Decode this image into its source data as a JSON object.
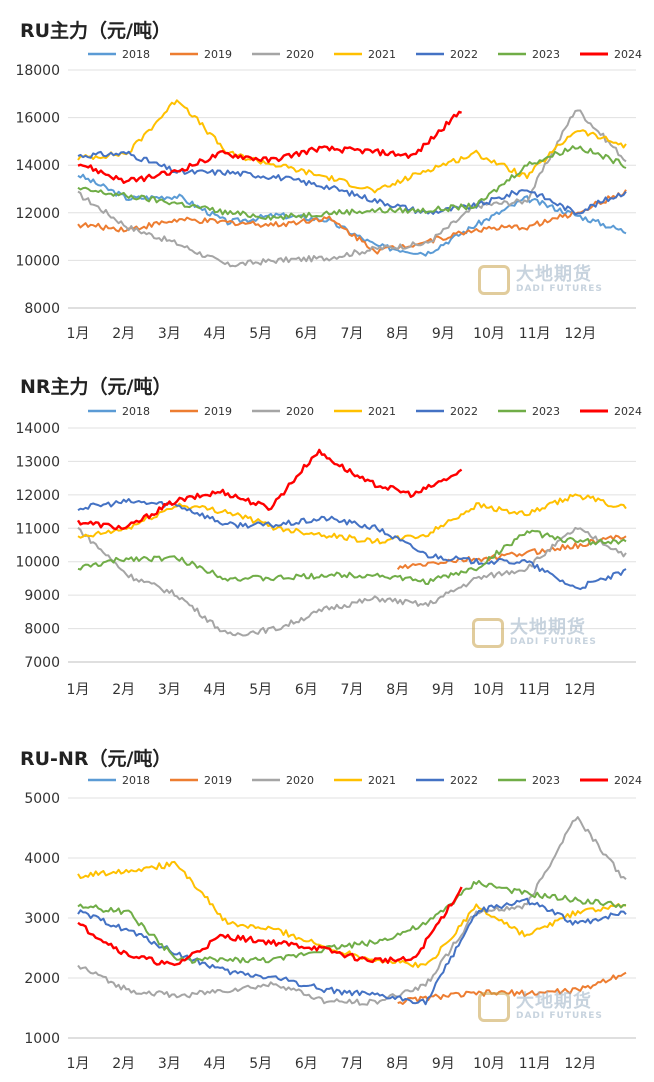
{
  "watermark": {
    "cn": "大地期货",
    "en": "DADI FUTURES"
  },
  "colors": {
    "2018": "#5b9bd5",
    "2019": "#ed7d31",
    "2020": "#a5a5a5",
    "2021": "#ffc000",
    "2022": "#4472c4",
    "2023": "#70ad47",
    "2024": "#ff0000"
  },
  "chart_data": [
    {
      "type": "line",
      "title": "RU主力（元/吨）",
      "months": [
        "1月",
        "2月",
        "3月",
        "4月",
        "5月",
        "6月",
        "7月",
        "8月",
        "9月",
        "10月",
        "11月",
        "12月"
      ],
      "ylim": [
        8000,
        18000
      ],
      "yticks": [
        8000,
        10000,
        12000,
        14000,
        16000,
        18000
      ],
      "legend": [
        "2018",
        "2019",
        "2020",
        "2021",
        "2022",
        "2023",
        "2024"
      ],
      "series": [
        {
          "name": "2018",
          "values": [
            13600,
            12600,
            12700,
            11600,
            11900,
            11700,
            10600,
            10300,
            11500,
            12600,
            11900,
            11200
          ],
          "end": 12.0
        },
        {
          "name": "2019",
          "values": [
            11500,
            11300,
            11700,
            11600,
            11500,
            11800,
            10400,
            10800,
            11300,
            11400,
            12000,
            12900
          ],
          "end": 12.0
        },
        {
          "name": "2020",
          "values": [
            12800,
            11400,
            10700,
            9800,
            10000,
            10100,
            10500,
            10700,
            12300,
            12500,
            16400,
            14200
          ],
          "end": 12.0
        },
        {
          "name": "2021",
          "values": [
            14300,
            14500,
            16800,
            14500,
            14000,
            13500,
            12900,
            13800,
            14500,
            13500,
            15500,
            14800
          ],
          "end": 12.0
        },
        {
          "name": "2022",
          "values": [
            14400,
            14500,
            13700,
            13700,
            13500,
            13100,
            12500,
            12000,
            12300,
            13000,
            12000,
            12900
          ],
          "end": 12.0
        },
        {
          "name": "2023",
          "values": [
            13000,
            12700,
            12400,
            12000,
            11800,
            12000,
            12100,
            12100,
            12300,
            14000,
            14800,
            14000
          ],
          "end": 12.0
        },
        {
          "name": "2024",
          "values": [
            14100,
            13300,
            13700,
            14500,
            14200,
            14700,
            14600,
            14400,
            16300
          ],
          "end": 8.4
        }
      ]
    },
    {
      "type": "line",
      "title": "NR主力（元/吨）",
      "months": [
        "1月",
        "2月",
        "3月",
        "4月",
        "5月",
        "6月",
        "7月",
        "8月",
        "9月",
        "10月",
        "11月",
        "12月"
      ],
      "ylim": [
        7000,
        14000
      ],
      "yticks": [
        7000,
        8000,
        9000,
        10000,
        11000,
        12000,
        13000,
        14000
      ],
      "legend": [
        "2018",
        "2019",
        "2020",
        "2021",
        "2022",
        "2023",
        "2024"
      ],
      "series": [
        {
          "name": "2019",
          "values": [
            9800,
            10000,
            10100,
            10300,
            10500,
            10800
          ],
          "start": 7.0,
          "end": 12.0
        },
        {
          "name": "2020",
          "values": [
            11000,
            9600,
            9000,
            7800,
            8000,
            8600,
            8900,
            8700,
            9500,
            9800,
            11000,
            10200
          ],
          "end": 12.0
        },
        {
          "name": "2021",
          "values": [
            10700,
            11000,
            11700,
            11500,
            11000,
            10800,
            10600,
            10800,
            11700,
            11400,
            12000,
            11600
          ],
          "end": 12.0
        },
        {
          "name": "2022",
          "values": [
            11600,
            11800,
            11700,
            11100,
            11100,
            11300,
            11000,
            10200,
            10000,
            10000,
            9200,
            9700
          ],
          "end": 12.0
        },
        {
          "name": "2023",
          "values": [
            9800,
            10100,
            10100,
            9500,
            9500,
            9600,
            9600,
            9400,
            9800,
            10900,
            10600,
            10600
          ],
          "end": 12.0
        },
        {
          "name": "2024",
          "values": [
            11200,
            11000,
            11800,
            12100,
            11600,
            13300,
            12400,
            12000,
            12700
          ],
          "end": 8.4
        }
      ]
    },
    {
      "type": "line",
      "title": "RU-NR（元/吨）",
      "months": [
        "1月",
        "2月",
        "3月",
        "4月",
        "5月",
        "6月",
        "7月",
        "8月",
        "9月",
        "10月",
        "11月",
        "12月"
      ],
      "ylim": [
        1000,
        5000
      ],
      "yticks": [
        1000,
        2000,
        3000,
        4000,
        5000
      ],
      "legend": [
        "2018",
        "2019",
        "2020",
        "2021",
        "2022",
        "2023",
        "2024"
      ],
      "series": [
        {
          "name": "2019",
          "values": [
            1600,
            1700,
            1750,
            1750,
            1800,
            2100
          ],
          "start": 7.0,
          "end": 12.0
        },
        {
          "name": "2020",
          "values": [
            2200,
            1800,
            1700,
            1800,
            1900,
            1600,
            1600,
            1900,
            3100,
            3200,
            4700,
            3600
          ],
          "end": 12.0
        },
        {
          "name": "2021",
          "values": [
            3700,
            3800,
            3900,
            2900,
            2800,
            2500,
            2300,
            2200,
            3200,
            2700,
            3100,
            3200
          ],
          "end": 12.0
        },
        {
          "name": "2022",
          "values": [
            3100,
            2800,
            2400,
            2100,
            2000,
            1800,
            1700,
            1600,
            3100,
            3300,
            2900,
            3100
          ],
          "end": 12.0
        },
        {
          "name": "2023",
          "values": [
            3200,
            3100,
            2300,
            2300,
            2300,
            2500,
            2600,
            2900,
            3600,
            3400,
            3300,
            3200
          ],
          "end": 12.0
        },
        {
          "name": "2024",
          "values": [
            2900,
            2400,
            2200,
            2700,
            2600,
            2500,
            2300,
            2300,
            3500
          ],
          "end": 8.4
        }
      ]
    }
  ]
}
